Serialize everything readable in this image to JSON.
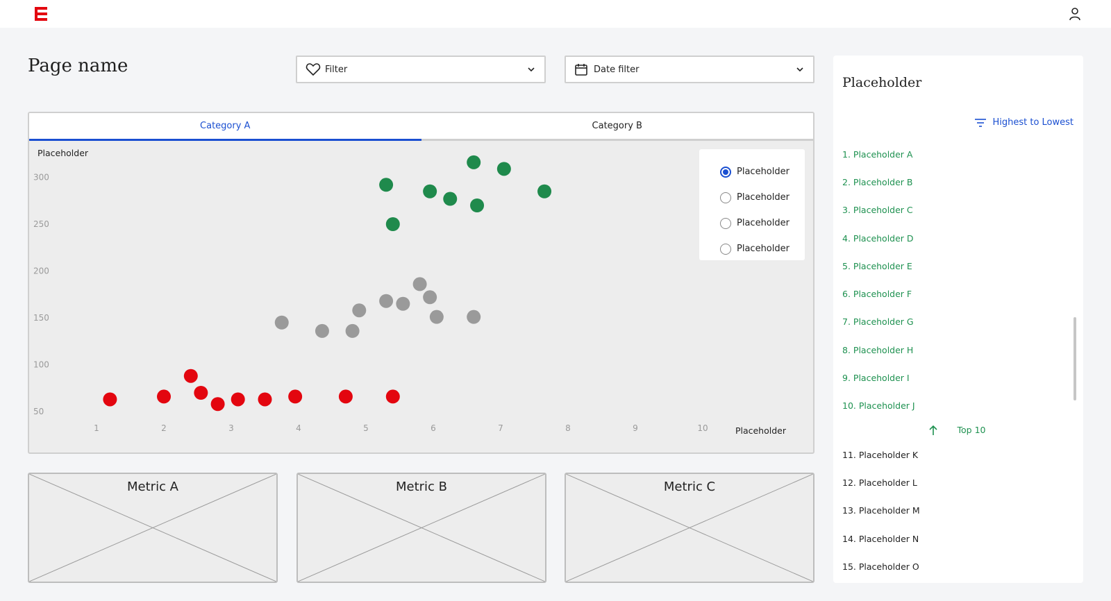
{
  "header": {
    "logo_icon": "brand-logo-E",
    "user_icon": "user-icon"
  },
  "page": {
    "title": "Page name"
  },
  "filters": {
    "filter": {
      "label": "Filter",
      "icon": "heart-icon"
    },
    "date_filter": {
      "label": "Date filter",
      "icon": "calendar-icon"
    }
  },
  "tabs": [
    {
      "label": "Category A",
      "active": true
    },
    {
      "label": "Category B",
      "active": false
    }
  ],
  "chart_legend": [
    {
      "label": "Placeholder",
      "checked": true
    },
    {
      "label": "Placeholder",
      "checked": false
    },
    {
      "label": "Placeholder",
      "checked": false
    },
    {
      "label": "Placeholder",
      "checked": false
    }
  ],
  "chart_data": {
    "type": "scatter",
    "ylabel": "Placeholder",
    "xlabel": "Placeholder",
    "xlim": [
      0,
      11
    ],
    "ylim": [
      30,
      320
    ],
    "xticks": [
      1,
      2,
      3,
      4,
      5,
      6,
      7,
      8,
      9,
      10
    ],
    "yticks": [
      50,
      100,
      150,
      200,
      250,
      300
    ],
    "grid": false,
    "legend_position": "top-right",
    "series": [
      {
        "color": "#e3060f",
        "points": [
          [
            1.2,
            63
          ],
          [
            2.0,
            66
          ],
          [
            2.4,
            88
          ],
          [
            2.55,
            70
          ],
          [
            2.8,
            58
          ],
          [
            3.1,
            63
          ],
          [
            3.5,
            63
          ],
          [
            3.95,
            66
          ],
          [
            4.7,
            66
          ],
          [
            5.4,
            66
          ]
        ]
      },
      {
        "color": "#9a9a9a",
        "points": [
          [
            3.75,
            145
          ],
          [
            4.35,
            136
          ],
          [
            4.8,
            136
          ],
          [
            4.9,
            158
          ],
          [
            5.3,
            168
          ],
          [
            5.55,
            165
          ],
          [
            5.8,
            186
          ],
          [
            5.95,
            172
          ],
          [
            6.05,
            151
          ],
          [
            6.6,
            151
          ]
        ]
      },
      {
        "color": "#1f8a4c",
        "points": [
          [
            5.3,
            292
          ],
          [
            5.4,
            250
          ],
          [
            5.95,
            285
          ],
          [
            6.25,
            277
          ],
          [
            6.6,
            316
          ],
          [
            6.65,
            270
          ],
          [
            7.05,
            309
          ],
          [
            7.65,
            285
          ]
        ]
      }
    ]
  },
  "metrics": [
    {
      "title": "Metric A"
    },
    {
      "title": "Metric B"
    },
    {
      "title": "Metric C"
    }
  ],
  "side_panel": {
    "title": "Placeholder",
    "sort_label": "Highest to Lowest",
    "top10_label": "Top 10",
    "items": [
      "1. Placeholder A",
      "2. Placeholder B",
      "3. Placeholder C",
      "4. Placeholder D",
      "5. Placeholder E",
      "6. Placeholder F",
      "7. Placeholder G",
      "8. Placeholder H",
      "9. Placeholder I",
      "10. Placeholder J",
      "11. Placeholder K",
      "12. Placeholder L",
      "13. Placeholder M",
      "14. Placeholder N",
      "15. Placeholder O"
    ]
  },
  "colors": {
    "accent": "#1a4fd1",
    "positive": "#1e9150",
    "brand": "#e3060f"
  }
}
